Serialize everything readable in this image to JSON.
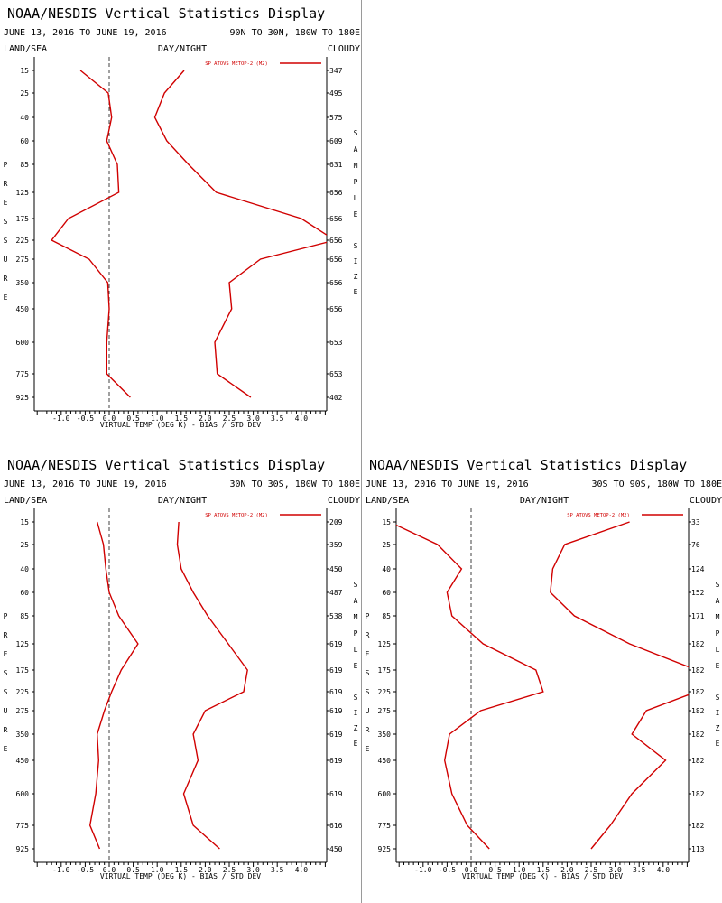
{
  "labels": {
    "title": "NOAA/NESDIS Vertical Statistics Display",
    "land_sea": "LAND/SEA",
    "day_night": "DAY/NIGHT",
    "cloudy": "CLOUDY",
    "xlabel": "VIRTUAL TEMP (DEG K) - BIAS / STD DEV",
    "ylabel_letters": [
      "P",
      "R",
      "E",
      "S",
      "S",
      "U",
      "R",
      "E"
    ],
    "right_letters_sample": [
      "S",
      "A",
      "M",
      "P",
      "L",
      "E"
    ],
    "right_letters_size": [
      "S",
      "I",
      "Z",
      "E"
    ],
    "legend": "SP ATOVS METOP-2 (M2)"
  },
  "colors": {
    "line": "#d00000",
    "axis": "#000000",
    "zero": "#404040",
    "divider": "#9a9a9a"
  },
  "chart_data": [
    {
      "type": "line",
      "title": "NOAA/NESDIS Vertical Statistics Display",
      "date_range": "JUNE 13, 2016 TO JUNE 19, 2016",
      "region": "90N TO 30N, 180W TO 180E",
      "xlabel": "VIRTUAL TEMP (DEG K) - BIAS / STD DEV",
      "xlim": [
        -1.5,
        4.5
      ],
      "xticks": [
        "-1.0",
        "-0.5",
        "0.0",
        "0.5",
        "1.0",
        "1.5",
        "2.0",
        "2.5",
        "3.0",
        "3.5",
        "4.0"
      ],
      "pressure_levels": [
        15,
        25,
        40,
        60,
        85,
        125,
        175,
        225,
        275,
        350,
        450,
        600,
        775,
        925
      ],
      "sample_size": [
        347,
        495,
        575,
        609,
        631,
        656,
        656,
        656,
        656,
        656,
        656,
        653,
        653,
        402
      ],
      "legend": "SP ATOVS METOP-2 (M2)",
      "series": [
        {
          "name": "bias",
          "values": [
            -0.6,
            -0.02,
            0.05,
            -0.05,
            0.17,
            0.2,
            -0.85,
            -1.2,
            -0.42,
            -0.03,
            0.0,
            -0.05,
            -0.05,
            0.44
          ]
        },
        {
          "name": "std dev",
          "values": [
            1.56,
            1.15,
            0.95,
            1.2,
            1.65,
            2.23,
            4.0,
            4.8,
            3.15,
            2.5,
            2.55,
            2.2,
            2.25,
            2.95
          ]
        }
      ]
    },
    {
      "type": "line",
      "title": "NOAA/NESDIS Vertical Statistics Display",
      "date_range": "JUNE 13, 2016 TO JUNE 19, 2016",
      "region": "30N TO 30S, 180W TO 180E",
      "xlabel": "VIRTUAL TEMP (DEG K) - BIAS / STD DEV",
      "xlim": [
        -1.5,
        4.5
      ],
      "xticks": [
        "-1.0",
        "-0.5",
        "0.0",
        "0.5",
        "1.0",
        "1.5",
        "2.0",
        "2.5",
        "3.0",
        "3.5",
        "4.0"
      ],
      "pressure_levels": [
        15,
        25,
        40,
        60,
        85,
        125,
        175,
        225,
        275,
        350,
        450,
        600,
        775,
        925
      ],
      "sample_size": [
        209,
        359,
        450,
        487,
        538,
        619,
        619,
        619,
        619,
        619,
        619,
        619,
        616,
        450
      ],
      "legend": "SP ATOVS METOP-2 (M2)",
      "series": [
        {
          "name": "bias",
          "values": [
            -0.25,
            -0.12,
            -0.07,
            0.0,
            0.2,
            0.6,
            0.25,
            0.05,
            -0.1,
            -0.25,
            -0.22,
            -0.28,
            -0.4,
            -0.2
          ]
        },
        {
          "name": "std dev",
          "values": [
            1.45,
            1.42,
            1.5,
            1.75,
            2.05,
            2.48,
            2.88,
            2.8,
            2.0,
            1.75,
            1.85,
            1.55,
            1.75,
            2.3
          ]
        }
      ]
    },
    {
      "type": "line",
      "title": "NOAA/NESDIS Vertical Statistics Display",
      "date_range": "JUNE 13, 2016 TO JUNE 19, 2016",
      "region": "30S TO 90S, 180W TO 180E",
      "xlabel": "VIRTUAL TEMP (DEG K) - BIAS / STD DEV",
      "xlim": [
        -1.5,
        4.5
      ],
      "xticks": [
        "-1.0",
        "-0.5",
        "0.0",
        "0.5",
        "1.0",
        "1.5",
        "2.0",
        "2.5",
        "3.0",
        "3.5",
        "4.0"
      ],
      "pressure_levels": [
        15,
        25,
        40,
        60,
        85,
        125,
        175,
        225,
        275,
        350,
        450,
        600,
        775,
        925
      ],
      "sample_size": [
        33,
        76,
        124,
        152,
        171,
        182,
        182,
        182,
        182,
        182,
        182,
        182,
        182,
        113
      ],
      "legend": "SP ATOVS METOP-2 (M2)",
      "series": [
        {
          "name": "bias",
          "values": [
            -1.75,
            -0.7,
            -0.2,
            -0.5,
            -0.4,
            0.25,
            1.35,
            1.5,
            0.2,
            -0.45,
            -0.55,
            -0.4,
            -0.08,
            0.38
          ]
        },
        {
          "name": "std dev",
          "values": [
            3.3,
            1.95,
            1.7,
            1.65,
            2.15,
            3.3,
            4.9,
            4.8,
            3.65,
            3.35,
            4.05,
            3.35,
            2.9,
            2.5
          ]
        }
      ]
    }
  ]
}
